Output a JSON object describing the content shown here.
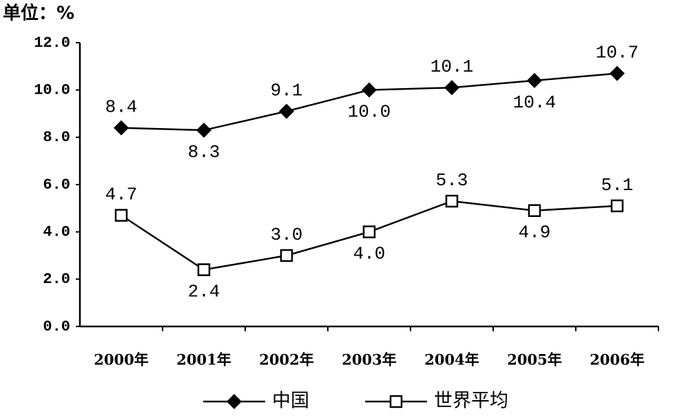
{
  "chart_data": {
    "type": "line",
    "y_unit_label": "单位：%",
    "categories": [
      "2000年",
      "2001年",
      "2002年",
      "2003年",
      "2004年",
      "2005年",
      "2006年"
    ],
    "series": [
      {
        "name": "中国",
        "color": "#000000",
        "marker": "diamond",
        "values": [
          8.4,
          8.3,
          9.1,
          10.0,
          10.1,
          10.4,
          10.7
        ],
        "value_labels": [
          "8.4",
          "8.3",
          "9.1",
          "10.0",
          "10.1",
          "10.4",
          "10.7"
        ]
      },
      {
        "name": "世界平均",
        "color": "#000000",
        "marker": "square",
        "values": [
          4.7,
          2.4,
          3.0,
          4.0,
          5.3,
          4.9,
          5.1
        ],
        "value_labels": [
          "4.7",
          "2.4",
          "3.0",
          "4.0",
          "5.3",
          "4.9",
          "5.1"
        ]
      }
    ],
    "ylim": [
      0,
      12
    ],
    "yticks": [
      {
        "value": 0,
        "label": "0.0"
      },
      {
        "value": 2,
        "label": "2.0"
      },
      {
        "value": 4,
        "label": "4.0"
      },
      {
        "value": 6,
        "label": "6.0"
      },
      {
        "value": 8,
        "label": "8.0"
      },
      {
        "value": 10,
        "label": "10.0"
      },
      {
        "value": 12,
        "label": "12.0"
      }
    ],
    "grid": false
  }
}
